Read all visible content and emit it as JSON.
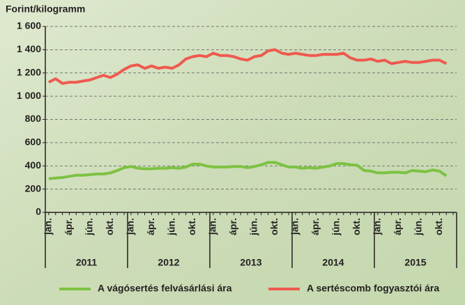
{
  "chart_data": {
    "type": "line",
    "y_axis_label": "Forint/kilogramm",
    "categories": [
      "jan.",
      null,
      null,
      "ápr.",
      null,
      null,
      "jún.",
      null,
      null,
      "okt.",
      null,
      null,
      "jan.",
      null,
      null,
      "ápr.",
      null,
      null,
      "jún.",
      null,
      null,
      "okt.",
      null,
      null,
      "jan.",
      null,
      null,
      "ápr.",
      null,
      null,
      "jún.",
      null,
      null,
      "okt.",
      null,
      null,
      "jan.",
      null,
      null,
      "ápr.",
      null,
      null,
      "jún.",
      null,
      null,
      "okt.",
      null,
      null,
      "jan.",
      null,
      null,
      "ápr.",
      null,
      null,
      "jún.",
      null,
      null,
      "okt.",
      null,
      null
    ],
    "years": [
      "2011",
      "2012",
      "2013",
      "2014",
      "2015"
    ],
    "series": [
      {
        "name": "A vágósertés felvásárlási ára",
        "color": "#7dc242",
        "values": [
          290,
          295,
          300,
          310,
          320,
          320,
          325,
          330,
          330,
          340,
          360,
          385,
          395,
          380,
          375,
          375,
          380,
          380,
          385,
          380,
          390,
          415,
          415,
          400,
          390,
          390,
          390,
          395,
          395,
          385,
          395,
          410,
          430,
          430,
          410,
          390,
          390,
          380,
          385,
          380,
          390,
          400,
          420,
          420,
          410,
          405,
          360,
          355,
          340,
          340,
          345,
          345,
          340,
          360,
          355,
          350,
          365,
          355,
          315,
          null
        ]
      },
      {
        "name": "A sertéscomb fogyasztói ára",
        "color": "#ef5a4f",
        "values": [
          1120,
          1150,
          1110,
          1120,
          1120,
          1130,
          1140,
          1160,
          1180,
          1160,
          1190,
          1230,
          1260,
          1270,
          1240,
          1260,
          1240,
          1250,
          1240,
          1270,
          1320,
          1340,
          1350,
          1340,
          1370,
          1350,
          1350,
          1340,
          1320,
          1310,
          1340,
          1350,
          1390,
          1400,
          1370,
          1360,
          1370,
          1360,
          1350,
          1350,
          1360,
          1360,
          1360,
          1370,
          1330,
          1310,
          1310,
          1320,
          1300,
          1310,
          1280,
          1290,
          1300,
          1290,
          1290,
          1300,
          1310,
          1310,
          1280,
          null
        ]
      }
    ],
    "ylim": [
      0,
      1600
    ],
    "yticks": [
      0,
      200,
      400,
      600,
      800,
      {
        "value": 1000,
        "label": "1 000"
      },
      {
        "value": 1200,
        "label": "1 200"
      },
      {
        "value": 1400,
        "label": "1 400"
      },
      {
        "value": 1600,
        "label": "1 600"
      }
    ],
    "grid": true,
    "legend": "bottom"
  }
}
